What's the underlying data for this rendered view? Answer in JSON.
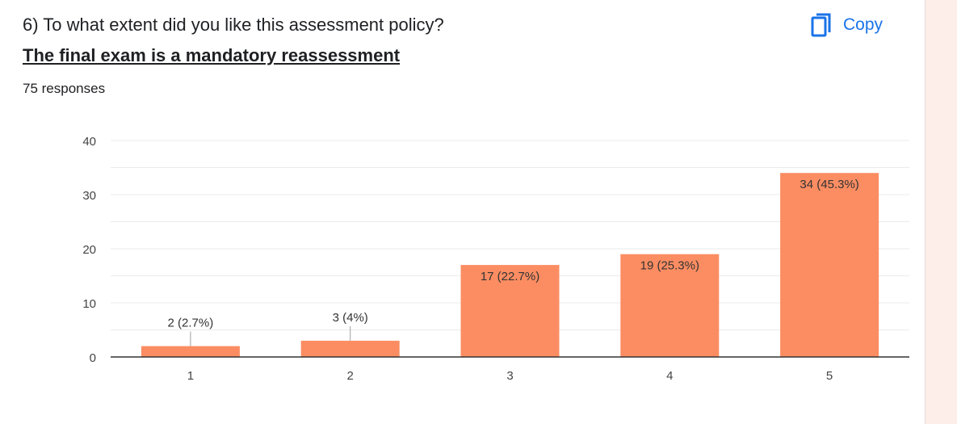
{
  "question": "6) To what extent did you like this assessment policy?",
  "subtitle": "The final exam is a mandatory reassessment",
  "responses_text": "75 responses",
  "copy_label": "Copy",
  "copy_icon": "copy-icon",
  "colors": {
    "bar": "#fc8d62",
    "accent": "#1a73e8"
  },
  "chart_data": {
    "type": "bar",
    "title": "",
    "xlabel": "",
    "ylabel": "",
    "categories": [
      "1",
      "2",
      "3",
      "4",
      "5"
    ],
    "values": [
      2,
      3,
      17,
      19,
      34
    ],
    "data_labels": [
      "2 (2.7%)",
      "3 (4%)",
      "17 (22.7%)",
      "19 (25.3%)",
      "34 (45.3%)"
    ],
    "ylim": [
      0,
      40
    ],
    "yticks": [
      0,
      10,
      20,
      30,
      40
    ],
    "grid": true,
    "legend": "none"
  }
}
